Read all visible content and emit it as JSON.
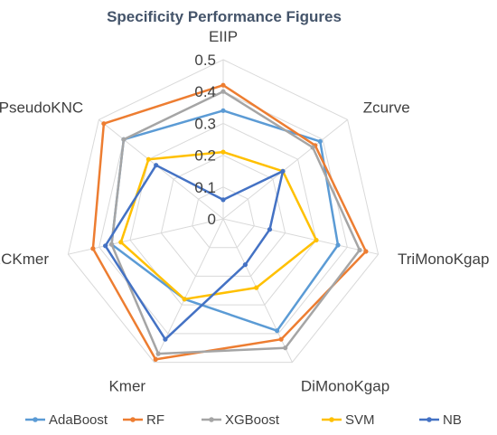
{
  "chart_data": {
    "type": "radar",
    "title": "Specificity Performance Figures",
    "axes": [
      "EIIP",
      "Zcurve",
      "TriMonoKgap",
      "DiMonoKgap",
      "Kmer",
      "RCKmer",
      "PseudoKNC"
    ],
    "ticks": [
      "0",
      "0.1",
      "0.2",
      "0.3",
      "0.4",
      "0.5"
    ],
    "rlim": [
      0,
      0.5
    ],
    "grid": true,
    "legend_position": "bottom",
    "series": [
      {
        "name": "AdaBoost",
        "color": "#5B9BD5",
        "values": [
          0.34,
          0.39,
          0.37,
          0.39,
          0.28,
          0.36,
          0.4
        ]
      },
      {
        "name": "RF",
        "color": "#ED7D31",
        "values": [
          0.42,
          0.37,
          0.46,
          0.42,
          0.49,
          0.42,
          0.48
        ]
      },
      {
        "name": "XGBoost",
        "color": "#A5A5A5",
        "values": [
          0.4,
          0.36,
          0.44,
          0.45,
          0.47,
          0.36,
          0.4
        ]
      },
      {
        "name": "SVM",
        "color": "#FFC000",
        "values": [
          0.21,
          0.24,
          0.3,
          0.24,
          0.28,
          0.33,
          0.3
        ]
      },
      {
        "name": "NB",
        "color": "#4472C4",
        "values": [
          0.06,
          0.24,
          0.15,
          0.16,
          0.42,
          0.38,
          0.27
        ]
      }
    ]
  }
}
